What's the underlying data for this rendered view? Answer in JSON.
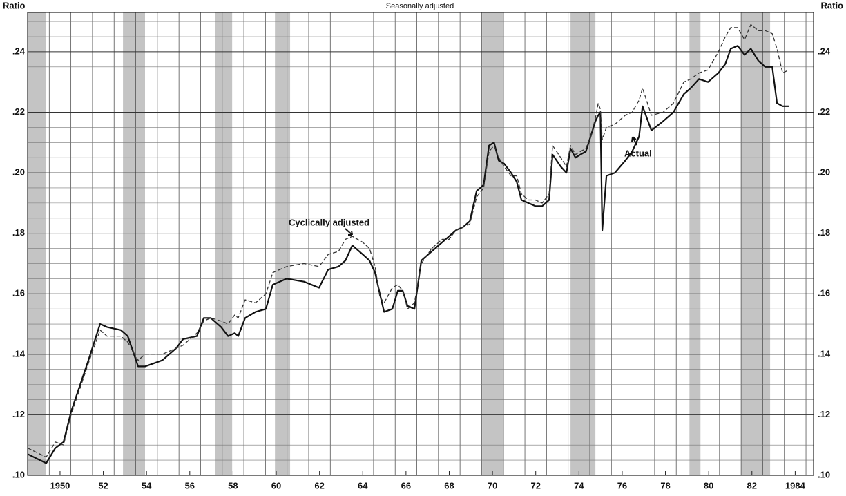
{
  "chart_data": {
    "type": "line",
    "subtitle": "Seasonally adjusted",
    "y_label": "Ratio",
    "x": [
      1949.0,
      1949.86,
      1950.28,
      1950.66,
      1951.01,
      1951.81,
      1952.35,
      1952.67,
      1953.31,
      1953.63,
      1954.11,
      1954.43,
      1955.23,
      1955.87,
      1956.19,
      1956.83,
      1957.15,
      1957.47,
      1957.95,
      1958.27,
      1958.58,
      1958.74,
      1959.06,
      1959.54,
      1960.02,
      1960.34,
      1960.98,
      1961.78,
      1962.48,
      1962.9,
      1963.38,
      1963.7,
      1964.02,
      1964.5,
      1964.81,
      1965.07,
      1965.29,
      1965.49,
      1965.87,
      1966.12,
      1966.35,
      1966.57,
      1966.89,
      1967.21,
      1967.69,
      1968.17,
      1968.49,
      1968.81,
      1969.13,
      1969.45,
      1969.77,
      1970.09,
      1970.34,
      1970.57,
      1970.79,
      1971.04,
      1971.36,
      1971.62,
      1971.84,
      1972.16,
      1972.48,
      1972.8,
      1973.12,
      1973.28,
      1973.66,
      1973.92,
      1974.11,
      1974.34,
      1974.56,
      1974.82,
      1975.04,
      1975.26,
      1975.39,
      1975.49,
      1975.58,
      1975.77,
      1976.16,
      1976.64,
      1976.96,
      1977.28,
      1977.44,
      1977.85,
      1978.39,
      1978.87,
      1979.35,
      1979.67,
      1980.05,
      1980.47,
      1980.95,
      1981.27,
      1981.52,
      1981.84,
      1982.16,
      1982.45,
      1982.8,
      1983.12,
      1983.44,
      1983.66,
      1983.92,
      1984.21
    ],
    "series": [
      {
        "name": "Actual",
        "color": "#111111",
        "dash": false,
        "values": [
          0.107,
          0.104,
          0.109,
          0.111,
          0.121,
          0.138,
          0.15,
          0.149,
          0.148,
          0.146,
          0.136,
          0.136,
          0.138,
          0.142,
          0.145,
          0.146,
          0.152,
          0.152,
          0.149,
          0.146,
          0.147,
          0.146,
          0.152,
          0.154,
          0.155,
          0.163,
          0.165,
          0.164,
          0.162,
          0.168,
          0.169,
          0.171,
          0.176,
          0.173,
          0.171,
          0.167,
          0.16,
          0.154,
          0.155,
          0.161,
          0.161,
          0.156,
          0.155,
          0.171,
          0.174,
          0.177,
          0.179,
          0.181,
          0.182,
          0.184,
          0.194,
          0.196,
          0.209,
          0.21,
          0.204,
          0.203,
          0.2,
          0.197,
          0.191,
          0.19,
          0.189,
          0.189,
          0.191,
          0.206,
          0.202,
          0.2,
          0.208,
          0.205,
          0.206,
          0.207,
          0.212,
          0.217,
          0.219,
          0.22,
          0.181,
          0.199,
          0.2,
          0.204,
          0.207,
          0.212,
          0.222,
          0.214,
          0.217,
          0.22,
          0.226,
          0.228,
          0.231,
          0.23,
          0.233,
          0.236,
          0.241,
          0.242,
          0.239,
          0.241,
          0.237,
          0.235,
          0.235,
          0.223,
          0.222,
          0.222
        ]
      },
      {
        "name": "Cyclically adjusted",
        "color": "#333333",
        "dash": true,
        "values": [
          0.109,
          0.106,
          0.111,
          0.11,
          0.12,
          0.137,
          0.148,
          0.146,
          0.146,
          0.144,
          0.138,
          0.14,
          0.14,
          0.142,
          0.143,
          0.147,
          0.151,
          0.152,
          0.151,
          0.15,
          0.153,
          0.152,
          0.158,
          0.157,
          0.16,
          0.167,
          0.169,
          0.17,
          0.169,
          0.173,
          0.174,
          0.178,
          0.179,
          0.177,
          0.175,
          0.169,
          0.159,
          0.157,
          0.162,
          0.163,
          0.161,
          0.155,
          0.157,
          0.17,
          0.175,
          0.178,
          0.178,
          0.181,
          0.182,
          0.183,
          0.192,
          0.195,
          0.207,
          0.209,
          0.205,
          0.202,
          0.199,
          0.199,
          0.193,
          0.191,
          0.191,
          0.19,
          0.193,
          0.209,
          0.205,
          0.202,
          0.209,
          0.206,
          0.207,
          0.208,
          0.212,
          0.218,
          0.223,
          0.221,
          0.211,
          0.215,
          0.216,
          0.219,
          0.22,
          0.224,
          0.228,
          0.219,
          0.22,
          0.223,
          0.23,
          0.231,
          0.233,
          0.234,
          0.24,
          0.245,
          0.248,
          0.248,
          0.244,
          0.249,
          0.247,
          0.247,
          0.246,
          0.241,
          0.233,
          0.234
        ]
      }
    ],
    "shaded_periods": [
      [
        1949.0,
        1949.83
      ],
      [
        1953.41,
        1954.43
      ],
      [
        1957.66,
        1958.46
      ],
      [
        1960.44,
        1961.14
      ],
      [
        1970.02,
        1971.04
      ],
      [
        1974.11,
        1975.26
      ],
      [
        1979.61,
        1980.12
      ],
      [
        1982.0,
        1983.34
      ]
    ],
    "xlim": [
      1949,
      1985.35
    ],
    "xticks": [
      {
        "value": 1950.5,
        "label": "1950"
      },
      {
        "value": 1952.5,
        "label": "52"
      },
      {
        "value": 1954.5,
        "label": "54"
      },
      {
        "value": 1956.5,
        "label": "56"
      },
      {
        "value": 1958.5,
        "label": "58"
      },
      {
        "value": 1960.5,
        "label": "60"
      },
      {
        "value": 1962.5,
        "label": "62"
      },
      {
        "value": 1964.5,
        "label": "64"
      },
      {
        "value": 1966.5,
        "label": "66"
      },
      {
        "value": 1968.5,
        "label": "68"
      },
      {
        "value": 1970.5,
        "label": "70"
      },
      {
        "value": 1972.5,
        "label": "72"
      },
      {
        "value": 1974.5,
        "label": "74"
      },
      {
        "value": 1976.5,
        "label": "76"
      },
      {
        "value": 1978.5,
        "label": "78"
      },
      {
        "value": 1980.5,
        "label": "80"
      },
      {
        "value": 1982.5,
        "label": "82"
      },
      {
        "value": 1984.5,
        "label": "1984"
      }
    ],
    "xgrid": [
      1950,
      1951,
      1952,
      1953,
      1954,
      1955,
      1956,
      1957,
      1958,
      1959,
      1960,
      1961,
      1962,
      1963,
      1964,
      1965,
      1966,
      1967,
      1968,
      1969,
      1970,
      1971,
      1972,
      1973,
      1974,
      1975,
      1976,
      1977,
      1978,
      1979,
      1980,
      1981,
      1982,
      1983,
      1984,
      1985
    ],
    "ylim": [
      0.1,
      0.253
    ],
    "yticks": [
      {
        "value": 0.1,
        "label": ".10"
      },
      {
        "value": 0.12,
        "label": ".12"
      },
      {
        "value": 0.14,
        "label": ".14"
      },
      {
        "value": 0.16,
        "label": ".16"
      },
      {
        "value": 0.18,
        "label": ".18"
      },
      {
        "value": 0.2,
        "label": ".20"
      },
      {
        "value": 0.22,
        "label": ".22"
      },
      {
        "value": 0.24,
        "label": ".24"
      }
    ],
    "ygrid": [
      0.105,
      0.11,
      0.115,
      0.125,
      0.13,
      0.135,
      0.145,
      0.15,
      0.155,
      0.165,
      0.17,
      0.175,
      0.185,
      0.19,
      0.195,
      0.205,
      0.21,
      0.215,
      0.225,
      0.23,
      0.235,
      0.245,
      0.25
    ],
    "grid": true
  }
}
